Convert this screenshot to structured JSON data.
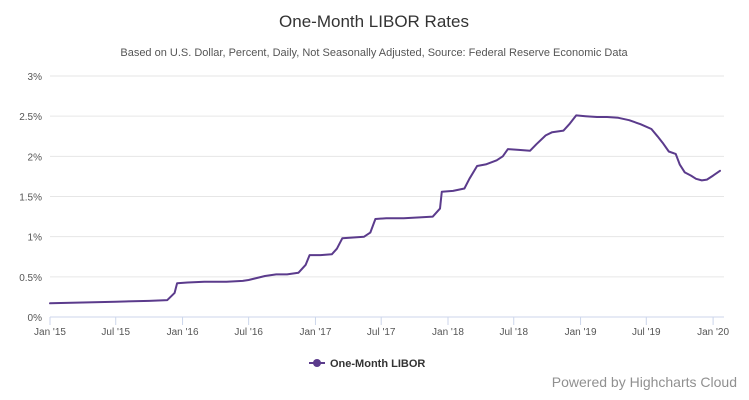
{
  "chart_data": {
    "type": "line",
    "title": "One-Month LIBOR Rates",
    "subtitle": "Based on U.S. Dollar, Percent, Daily, Not Seasonally Adjusted, Source: Federal Reserve Economic Data",
    "xlabel": "",
    "ylabel": "",
    "x_start": "2015-01-01",
    "x_end": "2020-01-31",
    "ylim": [
      0,
      3
    ],
    "y_ticks": [
      0,
      0.5,
      1,
      1.5,
      2,
      2.5,
      3
    ],
    "y_tick_labels": [
      "0%",
      "0.5%",
      "1%",
      "1.5%",
      "2%",
      "2.5%",
      "3%"
    ],
    "x_ticks": [
      "2015-01-01",
      "2015-07-01",
      "2016-01-01",
      "2016-07-01",
      "2017-01-01",
      "2017-07-01",
      "2018-01-01",
      "2018-07-01",
      "2019-01-01",
      "2019-07-01",
      "2020-01-01"
    ],
    "x_tick_labels": [
      "Jan '15",
      "Jul '15",
      "Jan '16",
      "Jul '16",
      "Jan '17",
      "Jul '17",
      "Jan '18",
      "Jul '18",
      "Jan '19",
      "Jul '19",
      "Jan '20"
    ],
    "grid": true,
    "legend_position": "bottom-center",
    "series": [
      {
        "name": "One-Month LIBOR",
        "color": "#5b3b8c",
        "x": [
          "2015-01-01",
          "2015-04-01",
          "2015-07-01",
          "2015-10-01",
          "2015-11-20",
          "2015-12-10",
          "2015-12-17",
          "2016-01-15",
          "2016-03-01",
          "2016-05-01",
          "2016-06-15",
          "2016-07-01",
          "2016-08-15",
          "2016-09-15",
          "2016-10-15",
          "2016-11-15",
          "2016-12-05",
          "2016-12-16",
          "2017-01-15",
          "2017-02-15",
          "2017-03-01",
          "2017-03-16",
          "2017-04-15",
          "2017-05-15",
          "2017-06-01",
          "2017-06-15",
          "2017-07-15",
          "2017-09-01",
          "2017-10-15",
          "2017-11-20",
          "2017-12-10",
          "2017-12-15",
          "2018-01-15",
          "2018-02-15",
          "2018-03-01",
          "2018-03-22",
          "2018-04-15",
          "2018-05-15",
          "2018-06-01",
          "2018-06-15",
          "2018-07-15",
          "2018-08-15",
          "2018-09-01",
          "2018-09-27",
          "2018-10-15",
          "2018-11-15",
          "2018-12-01",
          "2018-12-20",
          "2019-01-15",
          "2019-02-15",
          "2019-03-15",
          "2019-04-15",
          "2019-05-15",
          "2019-06-15",
          "2019-07-15",
          "2019-08-01",
          "2019-08-15",
          "2019-09-01",
          "2019-09-20",
          "2019-10-01",
          "2019-10-15",
          "2019-11-01",
          "2019-11-15",
          "2019-12-01",
          "2019-12-15",
          "2020-01-01",
          "2020-01-20"
        ],
        "values": [
          0.17,
          0.18,
          0.19,
          0.2,
          0.21,
          0.3,
          0.42,
          0.43,
          0.44,
          0.44,
          0.45,
          0.46,
          0.51,
          0.53,
          0.53,
          0.55,
          0.65,
          0.77,
          0.77,
          0.78,
          0.85,
          0.98,
          0.99,
          1.0,
          1.05,
          1.22,
          1.23,
          1.23,
          1.24,
          1.25,
          1.35,
          1.56,
          1.57,
          1.6,
          1.72,
          1.88,
          1.9,
          1.95,
          2.0,
          2.09,
          2.08,
          2.07,
          2.15,
          2.26,
          2.3,
          2.32,
          2.4,
          2.51,
          2.5,
          2.49,
          2.49,
          2.48,
          2.45,
          2.4,
          2.34,
          2.25,
          2.17,
          2.06,
          2.03,
          1.9,
          1.8,
          1.76,
          1.72,
          1.7,
          1.71,
          1.76,
          1.82
        ]
      }
    ]
  },
  "credits": "Powered by Highcharts Cloud"
}
